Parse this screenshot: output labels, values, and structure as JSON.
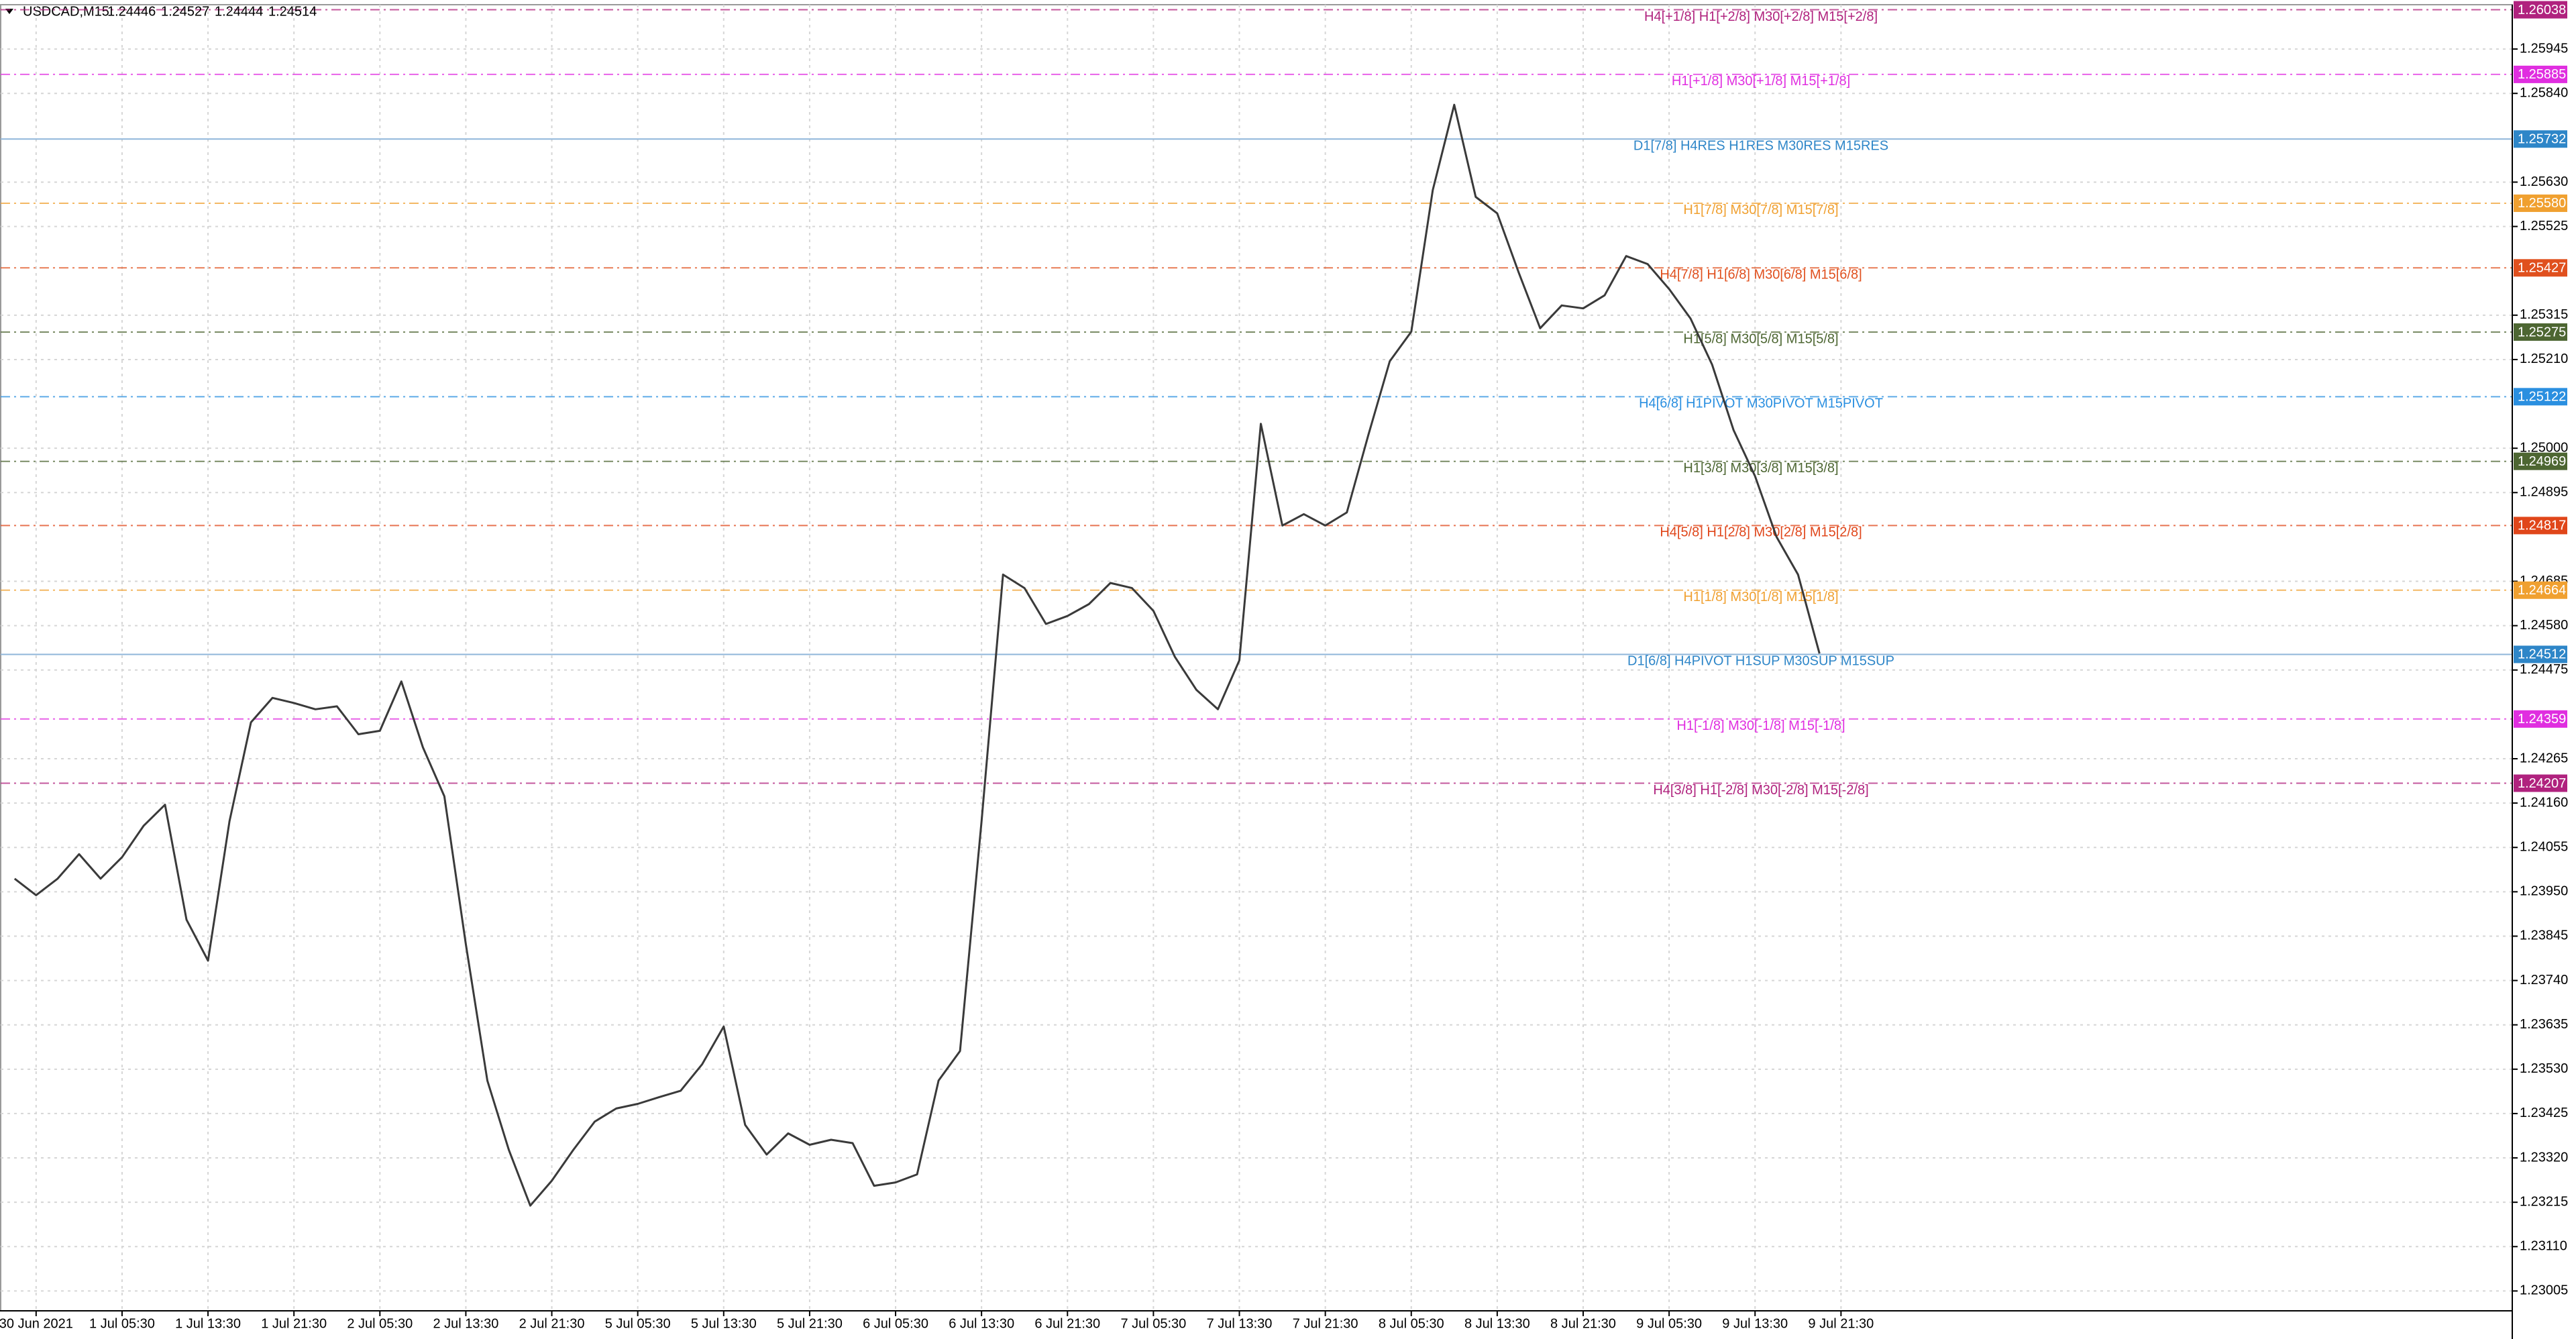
{
  "chart_data": {
    "type": "line",
    "symbol": "USDCAD,M15",
    "ohlc": [
      1.24446,
      1.24527,
      1.24444,
      1.24514
    ],
    "color": "#3a3a3a",
    "grid": true,
    "ylim": [
      1.22958,
      1.2605
    ],
    "yticks": [
      1.25945,
      {
        "value": 1.2584,
        "label": "1.25840"
      },
      {
        "value": 1.2563,
        "label": "1.25630"
      },
      1.25525,
      1.25315,
      {
        "value": 1.2521,
        "label": "1.25210"
      },
      {
        "value": 1.25,
        "label": "1.25000"
      },
      1.24895,
      1.24685,
      {
        "value": 1.2458,
        "label": "1.24580"
      },
      1.24475,
      1.24265,
      {
        "value": 1.2416,
        "label": "1.24160"
      },
      1.24055,
      {
        "value": 1.2395,
        "label": "1.23950"
      },
      1.23845,
      {
        "value": 1.2374,
        "label": "1.23740"
      },
      1.23635,
      {
        "value": 1.2353,
        "label": "1.23530"
      },
      1.23425,
      {
        "value": 1.2332,
        "label": "1.23320"
      },
      1.23215,
      {
        "value": 1.2311,
        "label": "1.23110"
      },
      1.23005
    ],
    "categories": [
      null,
      "30 Jun 2021",
      null,
      null,
      null,
      "1 Jul 05:30",
      null,
      null,
      null,
      "1 Jul 13:30",
      null,
      null,
      null,
      "1 Jul 21:30",
      null,
      null,
      null,
      "2 Jul 05:30",
      null,
      null,
      null,
      "2 Jul 13:30",
      null,
      null,
      null,
      "2 Jul 21:30",
      null,
      null,
      null,
      "5 Jul 05:30",
      null,
      null,
      null,
      "5 Jul 13:30",
      null,
      null,
      null,
      "5 Jul 21:30",
      null,
      null,
      null,
      "6 Jul 05:30",
      null,
      null,
      null,
      "6 Jul 13:30",
      null,
      null,
      null,
      "6 Jul 21:30",
      null,
      null,
      null,
      "7 Jul 05:30",
      null,
      null,
      null,
      "7 Jul 13:30",
      null,
      null,
      null,
      "7 Jul 21:30",
      null,
      null,
      null,
      "8 Jul 05:30",
      null,
      null,
      null,
      "8 Jul 13:30",
      null,
      null,
      null,
      "8 Jul 21:30",
      null,
      null,
      null,
      "9 Jul 05:30",
      null,
      null,
      null,
      "9 Jul 13:30",
      null,
      null,
      null,
      "9 Jul 21:30"
    ],
    "values": [
      1.23981,
      1.23942,
      1.23981,
      1.24039,
      1.23981,
      1.24032,
      1.24106,
      1.24156,
      1.23884,
      1.23787,
      1.24117,
      1.24351,
      1.24409,
      1.24397,
      1.24382,
      1.24389,
      1.24323,
      1.24331,
      1.24448,
      1.24292,
      1.24176,
      1.23826,
      1.23503,
      1.23339,
      1.23207,
      1.23266,
      1.23339,
      1.23406,
      1.23437,
      1.23448,
      1.23464,
      1.23479,
      1.23542,
      1.23631,
      1.23398,
      1.23328,
      1.23378,
      1.23351,
      1.23363,
      1.23355,
      1.23254,
      1.23262,
      1.23281,
      1.23503,
      1.23573,
      1.24117,
      1.24701,
      1.24669,
      1.24584,
      1.24603,
      1.24631,
      1.24681,
      1.24669,
      1.24615,
      1.24506,
      1.24428,
      1.24382,
      1.24498,
      1.25058,
      1.24817,
      1.24844,
      1.24817,
      1.24848,
      1.25031,
      1.25206,
      1.25276,
      1.25611,
      1.25813,
      1.25595,
      1.25556,
      1.25416,
      1.25284,
      1.25338,
      1.25331,
      1.25362,
      1.25455,
      1.25436,
      1.25377,
      1.25307,
      1.25198,
      1.25043,
      1.24934,
      1.2479,
      1.24701,
      1.24514,
      null
    ],
    "levels": {
      "names": [
        "H4[+1/8] H1[+2/8] M30[+2/8] M15[+2/8]",
        "H1[+1/8] M30[+1/8] M15[+1/8]",
        "D1[7/8] H4RES H1RES M30RES M15RES",
        "H1[7/8] M30[7/8] M15[7/8]",
        "H4[7/8] H1[6/8] M30[6/8] M15[6/8]",
        "H1[5/8] M30[5/8] M15[5/8]",
        "H4[6/8] H1PIVOT M30PIVOT M15PIVOT",
        "H1[3/8] M30[3/8] M15[3/8]",
        "H4[5/8] H1[2/8] M30[2/8] M15[2/8]",
        "H1[1/8] M30[1/8] M15[1/8]",
        "D1[6/8] H4PIVOT H1SUP M30SUP M15SUP",
        "H1[-1/8] M30[-1/8] M15[-1/8]",
        "H4[3/8] H1[-2/8] M30[-2/8] M15[-2/8]"
      ],
      "values": [
        1.26038,
        1.25885,
        1.25732,
        1.2558,
        1.25427,
        1.25275,
        1.25122,
        1.24969,
        1.24817,
        1.24664,
        1.24512,
        1.24359,
        1.24207
      ],
      "value_labels": [
        "1.26038",
        "1.25885",
        "1.25732",
        "1.25580",
        "1.25427",
        "1.25275",
        "1.25122",
        "1.24969",
        "1.24817",
        "1.24664",
        "1.24512",
        "1.24359",
        "1.24207"
      ],
      "colors": [
        "#b0227e",
        "#e02ee0",
        "#2e86c8",
        "#f0a030",
        "#e0501e",
        "#4d6632",
        "#2a8fe0",
        "#4d6632",
        "#e0461a",
        "#f0a030",
        "#2e86c8",
        "#e02ee0",
        "#b0227e"
      ],
      "styles": [
        "dashdot",
        "dashdot",
        "solid",
        "dashdot",
        "dashdot",
        "dashdot",
        "dashdot",
        "dashdot",
        "dashdot",
        "dashdot",
        "solid",
        "dashdot",
        "dashdot"
      ]
    }
  }
}
